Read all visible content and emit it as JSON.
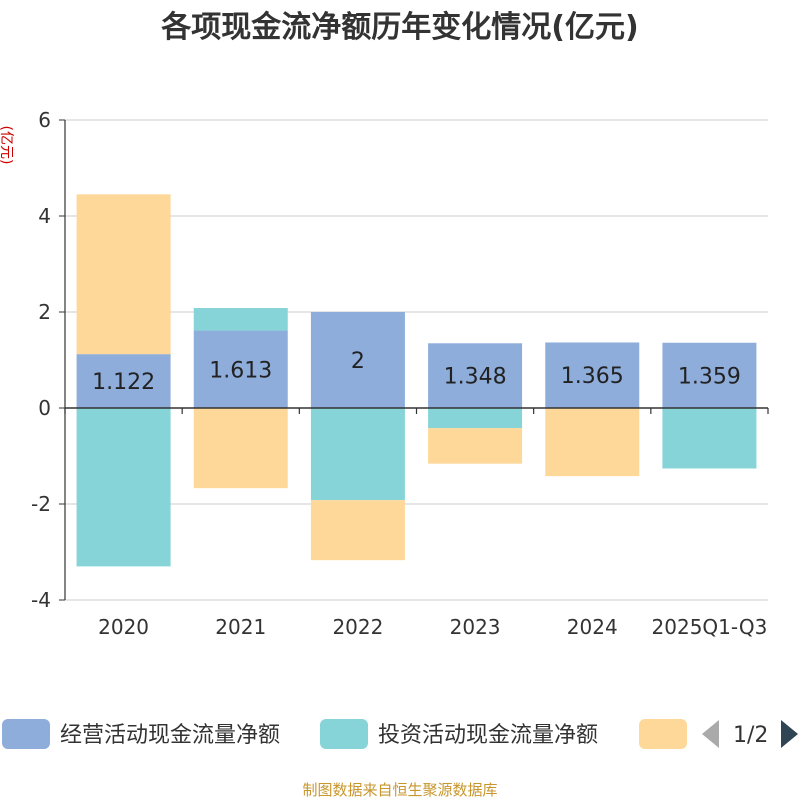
{
  "chart_data": {
    "type": "bar",
    "stacked": true,
    "title": "各项现金流净额历年变化情况(亿元)",
    "ylabel": "(亿元)",
    "ylim": [
      -4,
      6
    ],
    "yticks": [
      -4,
      -2,
      0,
      2,
      4,
      6
    ],
    "grid": true,
    "categories": [
      "2020",
      "2021",
      "2022",
      "2023",
      "2024",
      "2025Q1-Q3"
    ],
    "series": [
      {
        "name": "经营活动现金流量净额",
        "color": "#8eaddb",
        "values": [
          1.122,
          1.613,
          2,
          1.348,
          1.365,
          1.359
        ],
        "labels": [
          "1.122",
          "1.613",
          "2",
          "1.348",
          "1.365",
          "1.359"
        ]
      },
      {
        "name": "投资活动现金流量净额",
        "color": "#86d4d8",
        "values": [
          -3.3,
          0.47,
          -1.92,
          -0.42,
          0,
          -1.26
        ]
      },
      {
        "name": "",
        "color": "#fed899",
        "values": [
          3.33,
          -1.67,
          -1.25,
          -0.74,
          -1.42,
          0
        ]
      }
    ],
    "legend": {
      "position": "bottom",
      "page": "1/2"
    },
    "source": "制图数据来自恒生聚源数据库"
  }
}
